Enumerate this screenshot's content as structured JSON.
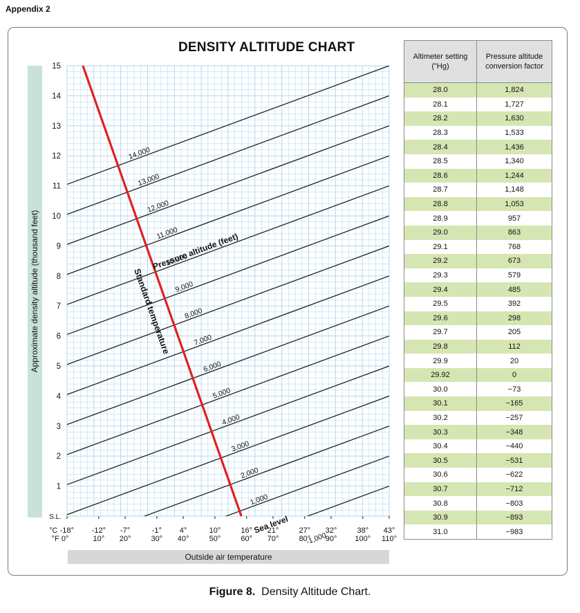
{
  "appendix": "Appendix 2",
  "caption": {
    "figure": "Figure 8.",
    "text": "Density Altitude Chart."
  },
  "colors": {
    "grid": "#a8d4ec",
    "line": "#222222",
    "standard_temperature": "#e02020",
    "ylabel_bar": "#c9e2d8",
    "table_shade": "#d6e6b3"
  },
  "chart_data": {
    "type": "line",
    "title": "DENSITY ALTITUDE CHART",
    "xlabel": "Outside air temperature",
    "ylabel": "Approximate density altitude (thousand feet)",
    "xlim": [
      -18,
      43
    ],
    "ylim": [
      0,
      15
    ],
    "x_ticks_c": [
      "°C -18°",
      "-12°",
      "-7°",
      "-1°",
      "4°",
      "10°",
      "16°",
      "21°",
      "27°",
      "32°",
      "38°",
      "43°"
    ],
    "x_ticks_f": [
      "°F  0°",
      "10°",
      "20°",
      "30°",
      "40°",
      "50°",
      "60°",
      "70°",
      "80°",
      "90°",
      "100°",
      "110°"
    ],
    "x_tick_values_c": [
      -18,
      -12,
      -7,
      -1,
      4,
      10,
      16,
      21,
      27,
      32,
      38,
      43
    ],
    "y_ticks": [
      "S.L.",
      "1",
      "2",
      "3",
      "4",
      "5",
      "6",
      "7",
      "8",
      "9",
      "10",
      "11",
      "12",
      "13",
      "14",
      "15"
    ],
    "grid": true,
    "series_label": "Pressure altitude (feet)",
    "series": [
      {
        "name": "-1,000",
        "points": [
          [
            -18,
            -3.95
          ],
          [
            43,
            0.0
          ]
        ]
      },
      {
        "name": "Sea level",
        "points": [
          [
            -18,
            -2.95
          ],
          [
            43,
            1.0
          ]
        ]
      },
      {
        "name": "1,000",
        "points": [
          [
            -18,
            -1.95
          ],
          [
            43,
            2.0
          ]
        ]
      },
      {
        "name": "2,000",
        "points": [
          [
            -18,
            -0.95
          ],
          [
            43,
            3.0
          ]
        ]
      },
      {
        "name": "3,000",
        "points": [
          [
            -18,
            0.05
          ],
          [
            43,
            4.0
          ]
        ]
      },
      {
        "name": "4,000",
        "points": [
          [
            -18,
            1.05
          ],
          [
            43,
            5.0
          ]
        ]
      },
      {
        "name": "5,000",
        "points": [
          [
            -18,
            2.05
          ],
          [
            43,
            6.0
          ]
        ]
      },
      {
        "name": "6,000",
        "points": [
          [
            -18,
            3.05
          ],
          [
            43,
            7.0
          ]
        ]
      },
      {
        "name": "7,000",
        "points": [
          [
            -18,
            4.05
          ],
          [
            43,
            8.0
          ]
        ]
      },
      {
        "name": "8,000",
        "points": [
          [
            -18,
            5.05
          ],
          [
            43,
            9.0
          ]
        ]
      },
      {
        "name": "9,000",
        "points": [
          [
            -18,
            6.05
          ],
          [
            43,
            10.0
          ]
        ]
      },
      {
        "name": "10,000",
        "points": [
          [
            -18,
            7.05
          ],
          [
            43,
            11.0
          ]
        ]
      },
      {
        "name": "11,000",
        "points": [
          [
            -18,
            8.05
          ],
          [
            43,
            12.0
          ]
        ]
      },
      {
        "name": "12,000",
        "points": [
          [
            -18,
            9.05
          ],
          [
            43,
            13.0
          ]
        ]
      },
      {
        "name": "13,000",
        "points": [
          [
            -18,
            10.05
          ],
          [
            43,
            14.0
          ]
        ]
      },
      {
        "name": "14,000",
        "points": [
          [
            -18,
            11.05
          ],
          [
            43,
            15.0
          ]
        ]
      }
    ],
    "standard_temperature": {
      "name": "Standard temperature",
      "points": [
        [
          -15,
          15
        ],
        [
          15,
          0
        ]
      ]
    },
    "line_labels": [
      "-1,000",
      "Sea level",
      "1,000",
      "2,000",
      "3,000",
      "4,000",
      "5,000",
      "6,000",
      "7,000",
      "8,000",
      "9,000",
      "10,000",
      "11,000",
      "12,000",
      "13,000",
      "14,000"
    ]
  },
  "table": {
    "headers": [
      "Altimeter setting (\"Hg)",
      "Pressure altitude conversion factor"
    ],
    "rows": [
      [
        "28.0",
        "1,824"
      ],
      [
        "28.1",
        "1,727"
      ],
      [
        "28.2",
        "1,630"
      ],
      [
        "28.3",
        "1,533"
      ],
      [
        "28.4",
        "1,436"
      ],
      [
        "28.5",
        "1,340"
      ],
      [
        "28.6",
        "1,244"
      ],
      [
        "28.7",
        "1,148"
      ],
      [
        "28.8",
        "1,053"
      ],
      [
        "28.9",
        "957"
      ],
      [
        "29.0",
        "863"
      ],
      [
        "29.1",
        "768"
      ],
      [
        "29.2",
        "673"
      ],
      [
        "29.3",
        "579"
      ],
      [
        "29.4",
        "485"
      ],
      [
        "29.5",
        "392"
      ],
      [
        "29.6",
        "298"
      ],
      [
        "29.7",
        "205"
      ],
      [
        "29.8",
        "112"
      ],
      [
        "29.9",
        "20"
      ],
      [
        "29.92",
        "0"
      ],
      [
        "30.0",
        "−73"
      ],
      [
        "30.1",
        "−165"
      ],
      [
        "30.2",
        "−257"
      ],
      [
        "30.3",
        "−348"
      ],
      [
        "30.4",
        "−440"
      ],
      [
        "30.5",
        "−531"
      ],
      [
        "30.6",
        "−622"
      ],
      [
        "30.7",
        "−712"
      ],
      [
        "30.8",
        "−803"
      ],
      [
        "30.9",
        "−893"
      ],
      [
        "31.0",
        "−983"
      ]
    ]
  }
}
